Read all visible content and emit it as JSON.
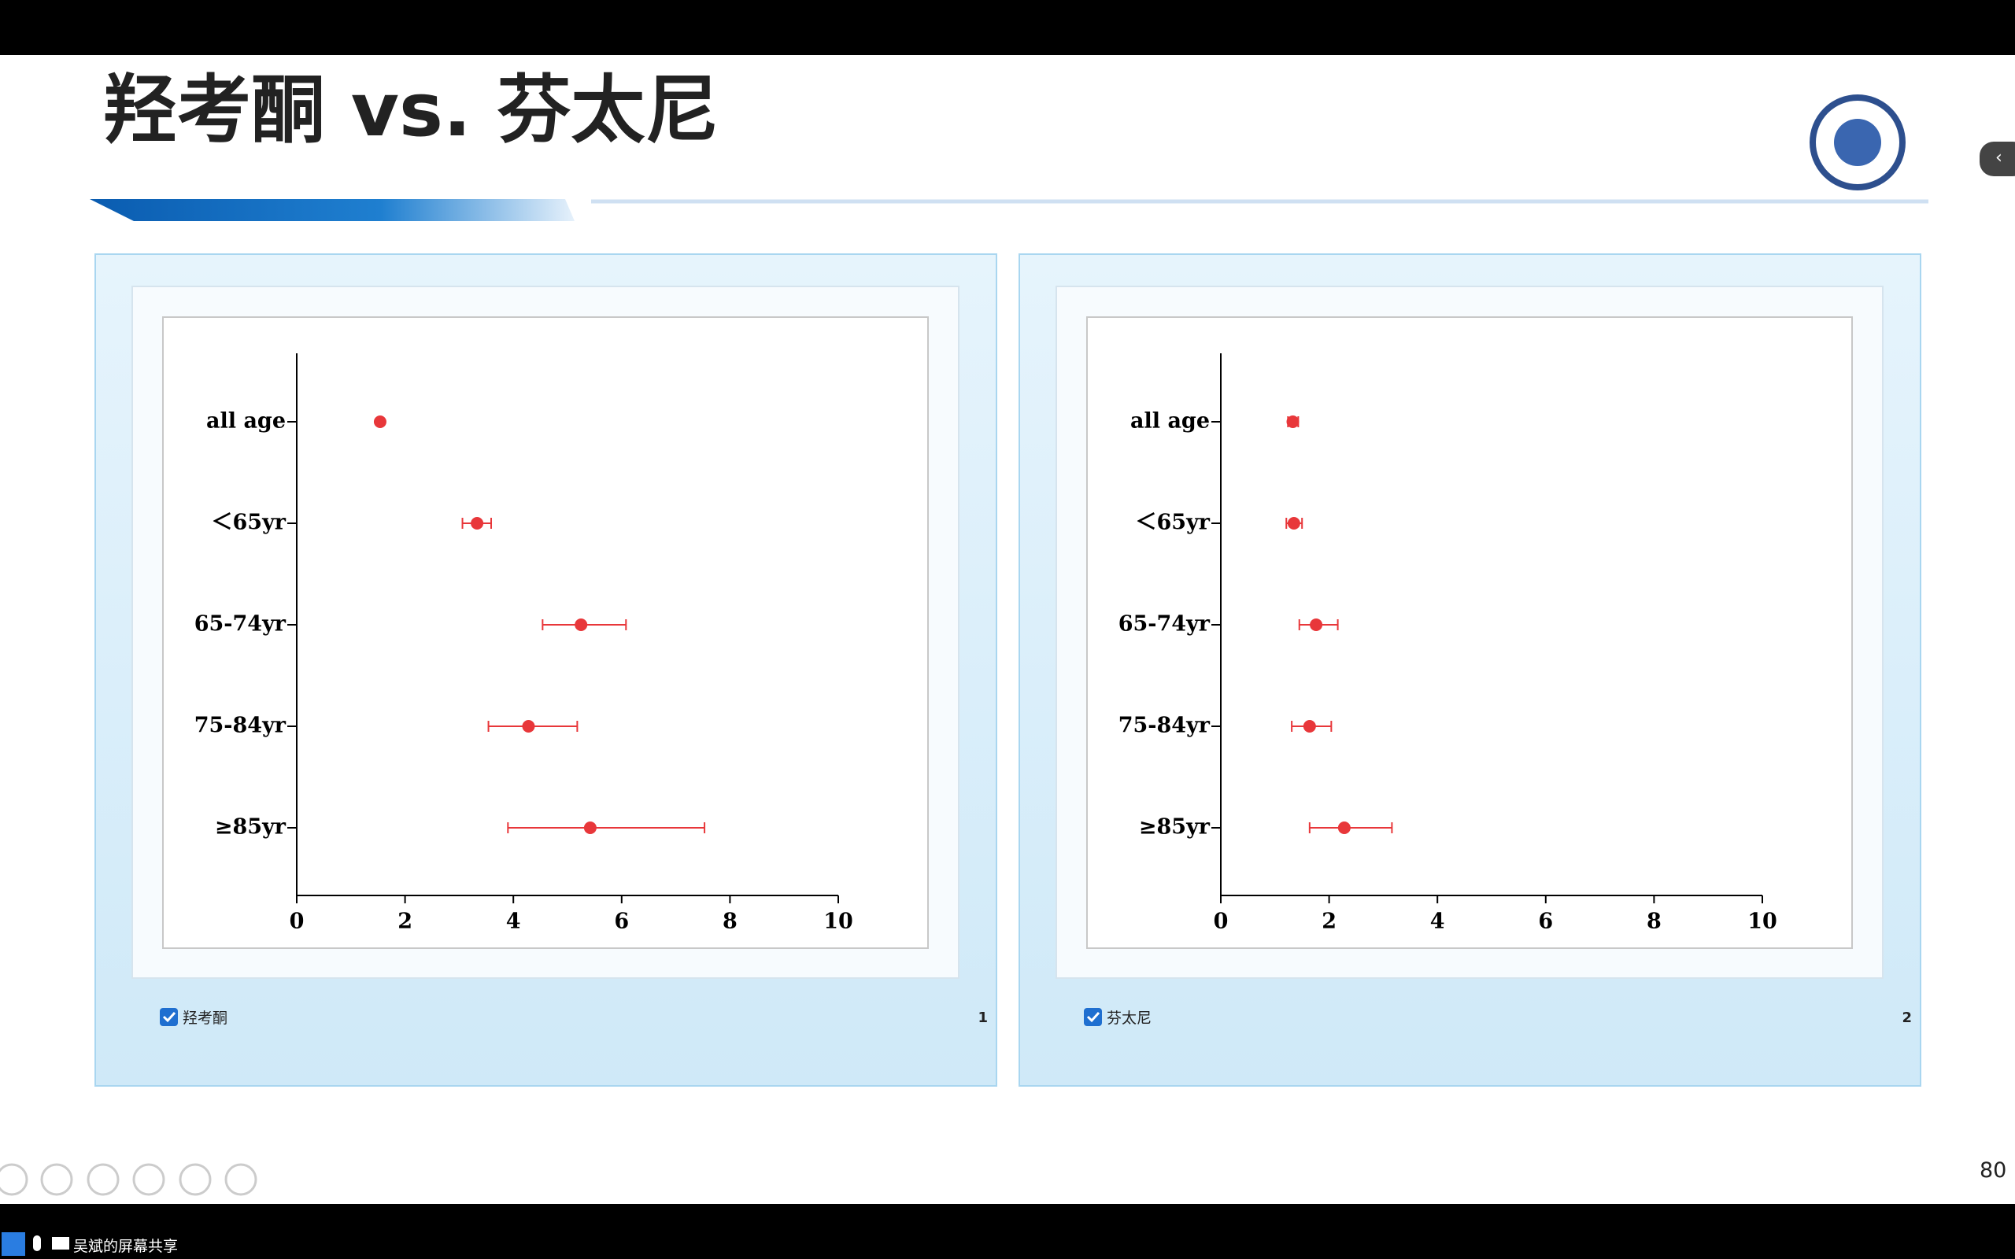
{
  "slide": {
    "title": "羟考酮 vs. 芬太尼",
    "page_number": 80
  },
  "panels": [
    {
      "label": "羟考酮",
      "number": 1
    },
    {
      "label": "芬太尼",
      "number": 2
    }
  ],
  "taskbar": {
    "text": "吴斌的屏幕共享"
  },
  "chart_data": [
    {
      "type": "errorbar",
      "categories": [
        "all age",
        "＜65yr",
        "65-74yr",
        "75-84yr",
        "≥85yr"
      ],
      "values": [
        1.54,
        3.33,
        5.25,
        4.28,
        5.42
      ],
      "lower": [
        1.5,
        3.06,
        4.54,
        3.54,
        3.9
      ],
      "upper": [
        1.58,
        3.59,
        6.08,
        5.18,
        7.53
      ],
      "color": "#e8373a",
      "xlim": [
        0,
        10
      ],
      "xticks": [
        0,
        2,
        4,
        6,
        8,
        10
      ]
    },
    {
      "type": "errorbar",
      "categories": [
        "all age",
        "＜65yr",
        "65-74yr",
        "75-84yr",
        "≥85yr"
      ],
      "values": [
        1.33,
        1.35,
        1.76,
        1.64,
        2.28
      ],
      "lower": [
        1.24,
        1.21,
        1.45,
        1.31,
        1.64
      ],
      "upper": [
        1.43,
        1.5,
        2.16,
        2.04,
        3.16
      ],
      "color": "#e8373a",
      "xlim": [
        0,
        10
      ],
      "xticks": [
        0,
        2,
        4,
        6,
        8,
        10
      ]
    }
  ]
}
